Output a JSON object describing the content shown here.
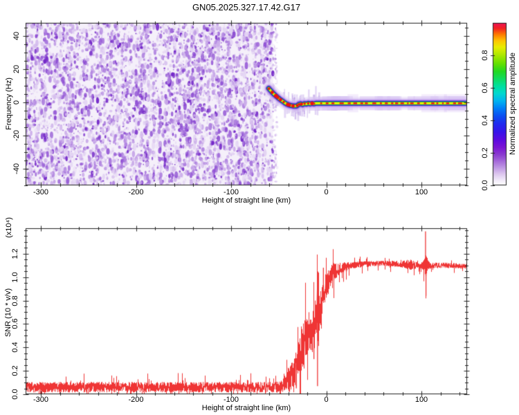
{
  "title": "GN05.2025.327.17.42.G17",
  "colors": {
    "snr_line": "#ef3535",
    "axis": "#222222",
    "noise_background": "#f5f0fa",
    "noise_speckles": [
      "#e2d2f3",
      "#cbacea",
      "#ad7edf",
      "#8f4fd4",
      "#7428c8"
    ],
    "trace_layers": {
      "outer_fringe": "#e3d6f6",
      "lavender": "#cfb6f0",
      "purple": "#8d4fd8",
      "navy": "#2020c4",
      "green": "#2ad42a",
      "yellow": "#f2f200",
      "red": "#ee1111"
    },
    "colorbar_gradient_bottom_to_top": [
      [
        0.0,
        "#ffffff"
      ],
      [
        0.03,
        "#f3ecfa"
      ],
      [
        0.07,
        "#dcc6ef"
      ],
      [
        0.11,
        "#bf97e4"
      ],
      [
        0.15,
        "#a468d9"
      ],
      [
        0.19,
        "#8a3bd0"
      ],
      [
        0.235,
        "#7a14d4"
      ],
      [
        0.28,
        "#5c0ae0"
      ],
      [
        0.33,
        "#3614ea"
      ],
      [
        0.38,
        "#1f2bee"
      ],
      [
        0.43,
        "#0b52f2"
      ],
      [
        0.475,
        "#0080f8"
      ],
      [
        0.52,
        "#00b4f0"
      ],
      [
        0.565,
        "#00d8d0"
      ],
      [
        0.61,
        "#00e0a0"
      ],
      [
        0.655,
        "#10dc60"
      ],
      [
        0.7,
        "#22d822"
      ],
      [
        0.75,
        "#66e000"
      ],
      [
        0.8,
        "#aae800"
      ],
      [
        0.85,
        "#e8ee00"
      ],
      [
        0.89,
        "#ffc400"
      ],
      [
        0.93,
        "#ff7700"
      ],
      [
        0.965,
        "#f32222"
      ],
      [
        1.0,
        "#ec1256"
      ]
    ]
  },
  "chart_data": [
    {
      "type": "heatmap",
      "name": "spectrogram",
      "title": "GN05.2025.327.17.42.G17",
      "xlabel": "Height of straight line (km)",
      "ylabel": "Frequency (Hz)",
      "xlim": [
        -316,
        148
      ],
      "ylim": [
        -50,
        48
      ],
      "x_tick_values": [
        -300,
        -200,
        -100,
        0,
        100
      ],
      "x_tick_labels": [
        "-300",
        "-200",
        "-100",
        "0",
        "100"
      ],
      "x_minor_step": 20,
      "y_tick_values": [
        40,
        20,
        0,
        -20,
        -40
      ],
      "y_tick_labels": [
        "40",
        "20",
        "0",
        "-20",
        "-40"
      ],
      "y_minor_step": 5,
      "noise_region_km": [
        -316,
        -56
      ],
      "carrier_trace_km_hz": [
        [
          -60.5,
          8.5
        ],
        [
          -57.5,
          6.5
        ],
        [
          -55,
          5.0
        ],
        [
          -52,
          3.5
        ],
        [
          -49,
          2.0
        ],
        [
          -46,
          0.8
        ],
        [
          -43,
          -0.5
        ],
        [
          -40,
          -1.4
        ],
        [
          -37,
          -1.9
        ],
        [
          -34,
          -2.2
        ],
        [
          -31,
          -2.1
        ],
        [
          -29,
          -1.2
        ],
        [
          -27,
          -0.8
        ],
        [
          -25,
          -1.3
        ],
        [
          -23,
          -0.7
        ],
        [
          -21,
          -1.0
        ],
        [
          -19,
          -0.5
        ],
        [
          -17,
          -0.9
        ],
        [
          -15,
          -0.6
        ],
        [
          -13,
          -0.8
        ],
        [
          -11,
          -0.5
        ],
        [
          0,
          -0.5
        ],
        [
          30,
          -0.5
        ],
        [
          70,
          -0.5
        ],
        [
          110,
          -0.5
        ],
        [
          148,
          -0.5
        ]
      ],
      "colorbar": {
        "label": "Normalized spectral amplitude",
        "range": [
          0,
          1
        ],
        "tick_values": [
          0.0,
          0.2,
          0.4,
          0.6,
          0.8
        ],
        "tick_labels": [
          "0.0",
          "0.2",
          "0.4",
          "0.6",
          "0.8"
        ]
      }
    },
    {
      "type": "line",
      "name": "snr",
      "xlabel": "Height of straight line (km)",
      "ylabel": "SNR (10 * v/v)",
      "scale_note": "(x10⁴)",
      "xlim": [
        -316,
        148
      ],
      "ylim": [
        0,
        1.417
      ],
      "x_tick_values": [
        -300,
        -200,
        -100,
        0,
        100
      ],
      "x_tick_labels": [
        "-300",
        "-200",
        "-100",
        "0",
        "100"
      ],
      "x_minor_step": 20,
      "y_tick_values": [
        0.0,
        0.2,
        0.4,
        0.6,
        0.8,
        1.0,
        1.2
      ],
      "y_tick_labels": [
        "0.0",
        "0.2",
        "0.4",
        "0.6",
        "0.8",
        "1.0",
        "1.2"
      ],
      "y_minor_step": 0.05,
      "mean_envelope_km_value": [
        [
          -316,
          0.06
        ],
        [
          -100,
          0.06
        ],
        [
          -50,
          0.06
        ],
        [
          -45,
          0.08
        ],
        [
          -42,
          0.1
        ],
        [
          -40,
          0.13
        ],
        [
          -38,
          0.12
        ],
        [
          -36,
          0.18
        ],
        [
          -34,
          0.16
        ],
        [
          -32,
          0.28
        ],
        [
          -31,
          0.22
        ],
        [
          -30,
          0.32
        ],
        [
          -29,
          0.26
        ],
        [
          -28,
          0.38
        ],
        [
          -27,
          0.3
        ],
        [
          -26,
          0.42
        ],
        [
          -25,
          0.36
        ],
        [
          -24,
          0.45
        ],
        [
          -23,
          0.38
        ],
        [
          -22,
          0.5
        ],
        [
          -21,
          0.44
        ],
        [
          -20,
          0.52
        ],
        [
          -19,
          0.46
        ],
        [
          -18,
          0.56
        ],
        [
          -17,
          0.5
        ],
        [
          -16,
          0.58
        ],
        [
          -15,
          0.52
        ],
        [
          -14,
          0.6
        ],
        [
          -13,
          0.55
        ],
        [
          -12,
          0.62
        ],
        [
          -11,
          0.58
        ],
        [
          -10,
          0.66
        ],
        [
          -9,
          0.62
        ],
        [
          -8,
          0.7
        ],
        [
          -7,
          0.66
        ],
        [
          -6,
          0.74
        ],
        [
          -5,
          0.72
        ],
        [
          -4,
          0.8
        ],
        [
          -3,
          0.85
        ],
        [
          -2,
          0.88
        ],
        [
          -1,
          0.9
        ],
        [
          0,
          0.92
        ],
        [
          2,
          0.96
        ],
        [
          4,
          1.0
        ],
        [
          6,
          1.02
        ],
        [
          8,
          1.04
        ],
        [
          10,
          1.05
        ],
        [
          13,
          1.06
        ],
        [
          16,
          1.08
        ],
        [
          20,
          1.09
        ],
        [
          25,
          1.1
        ],
        [
          40,
          1.11
        ],
        [
          60,
          1.12
        ],
        [
          80,
          1.11
        ],
        [
          100,
          1.1
        ],
        [
          110,
          1.1
        ],
        [
          130,
          1.1
        ],
        [
          148,
          1.09
        ]
      ],
      "noise_amplitude_km_value": [
        [
          -316,
          0.045
        ],
        [
          -60,
          0.045
        ],
        [
          -48,
          0.05
        ],
        [
          -42,
          0.08
        ],
        [
          -38,
          0.12
        ],
        [
          -34,
          0.15
        ],
        [
          -30,
          0.18
        ],
        [
          -26,
          0.2
        ],
        [
          -22,
          0.2
        ],
        [
          -18,
          0.18
        ],
        [
          -14,
          0.2
        ],
        [
          -10,
          0.22
        ],
        [
          -6,
          0.18
        ],
        [
          -2,
          0.14
        ],
        [
          0,
          0.12
        ],
        [
          4,
          0.1
        ],
        [
          8,
          0.08
        ],
        [
          12,
          0.06
        ],
        [
          16,
          0.05
        ],
        [
          20,
          0.04
        ],
        [
          25,
          0.028
        ],
        [
          60,
          0.022
        ],
        [
          80,
          0.03
        ],
        [
          88,
          0.045
        ],
        [
          95,
          0.028
        ],
        [
          100,
          0.025
        ],
        [
          103,
          0.05
        ],
        [
          105,
          0.1
        ],
        [
          107,
          0.04
        ],
        [
          110,
          0.025
        ],
        [
          148,
          0.022
        ]
      ],
      "spikes_km_value": [
        [
          -31.5,
          0.05
        ],
        [
          -13,
          0.3
        ],
        [
          -9.2,
          0.07
        ],
        [
          -3,
          1.08
        ],
        [
          104.3,
          1.39
        ],
        [
          104.8,
          0.84
        ]
      ]
    }
  ]
}
